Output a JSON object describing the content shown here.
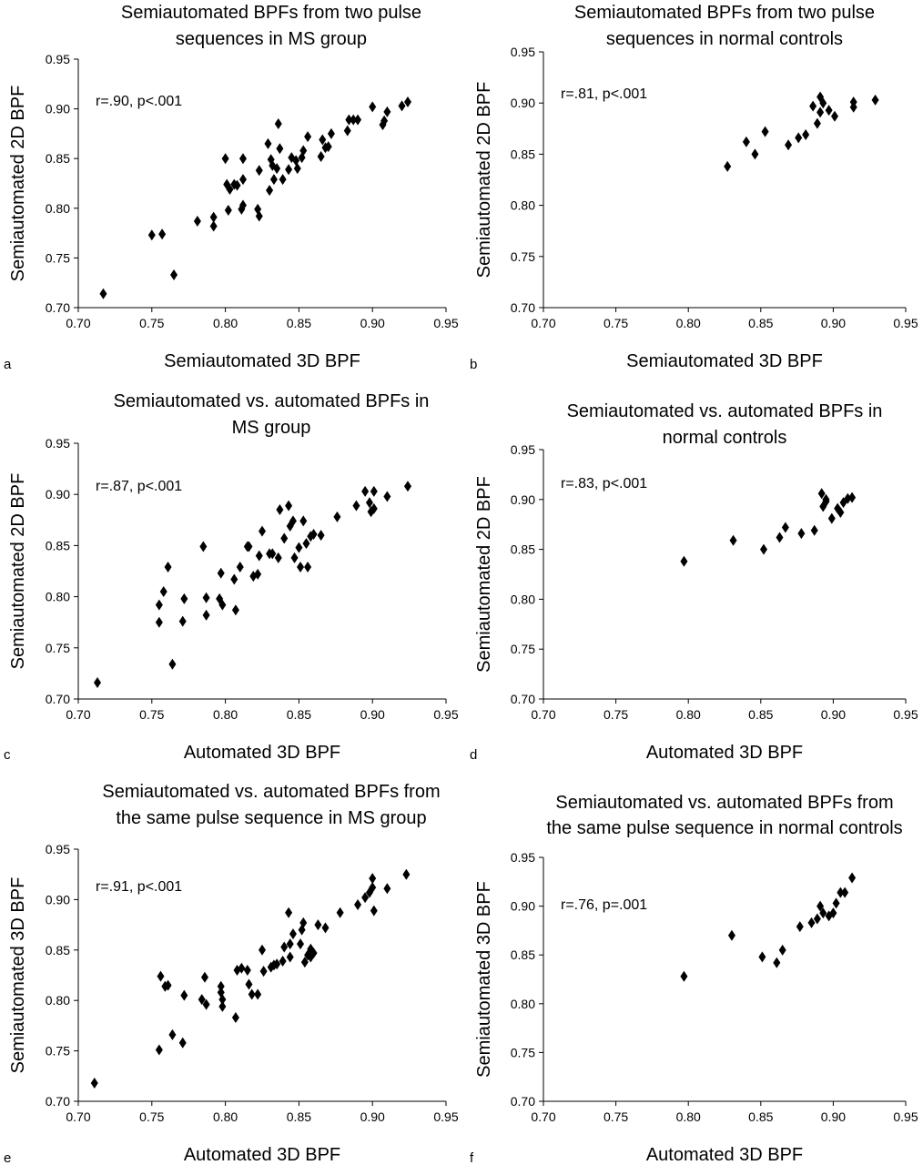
{
  "chart_data": [
    {
      "type": "scatter",
      "panel": "a",
      "title": [
        "Semiautomated BPFs from two pulse",
        "sequences in MS group"
      ],
      "xlabel": "Semiautomated 3D BPF",
      "ylabel": "Semiautomated 2D BPF",
      "annotation": "r=.90, p<.001",
      "xlim": [
        0.7,
        0.95
      ],
      "ylim": [
        0.7,
        0.95
      ],
      "xticks": [
        "0.70",
        "0.75",
        "0.80",
        "0.85",
        "0.90",
        "0.95"
      ],
      "yticks": [
        "0.70",
        "0.75",
        "0.80",
        "0.85",
        "0.90",
        "0.95"
      ],
      "grid": false,
      "points": [
        [
          0.717,
          0.714
        ],
        [
          0.75,
          0.773
        ],
        [
          0.757,
          0.774
        ],
        [
          0.765,
          0.733
        ],
        [
          0.781,
          0.787
        ],
        [
          0.792,
          0.791
        ],
        [
          0.792,
          0.782
        ],
        [
          0.8,
          0.85
        ],
        [
          0.801,
          0.824
        ],
        [
          0.803,
          0.819
        ],
        [
          0.802,
          0.798
        ],
        [
          0.806,
          0.824
        ],
        [
          0.808,
          0.823
        ],
        [
          0.811,
          0.799
        ],
        [
          0.812,
          0.829
        ],
        [
          0.812,
          0.85
        ],
        [
          0.812,
          0.803
        ],
        [
          0.822,
          0.799
        ],
        [
          0.823,
          0.792
        ],
        [
          0.823,
          0.838
        ],
        [
          0.829,
          0.865
        ],
        [
          0.83,
          0.818
        ],
        [
          0.831,
          0.849
        ],
        [
          0.832,
          0.843
        ],
        [
          0.833,
          0.829
        ],
        [
          0.835,
          0.84
        ],
        [
          0.836,
          0.885
        ],
        [
          0.837,
          0.86
        ],
        [
          0.839,
          0.829
        ],
        [
          0.843,
          0.839
        ],
        [
          0.845,
          0.851
        ],
        [
          0.848,
          0.848
        ],
        [
          0.849,
          0.84
        ],
        [
          0.852,
          0.851
        ],
        [
          0.853,
          0.858
        ],
        [
          0.856,
          0.872
        ],
        [
          0.865,
          0.852
        ],
        [
          0.866,
          0.869
        ],
        [
          0.868,
          0.861
        ],
        [
          0.87,
          0.862
        ],
        [
          0.872,
          0.875
        ],
        [
          0.883,
          0.878
        ],
        [
          0.884,
          0.889
        ],
        [
          0.887,
          0.889
        ],
        [
          0.89,
          0.889
        ],
        [
          0.9,
          0.902
        ],
        [
          0.907,
          0.884
        ],
        [
          0.908,
          0.888
        ],
        [
          0.91,
          0.897
        ],
        [
          0.92,
          0.903
        ],
        [
          0.924,
          0.907
        ]
      ]
    },
    {
      "type": "scatter",
      "panel": "b",
      "title": [
        "Semiautomated BPFs from two pulse",
        "sequences in normal controls"
      ],
      "xlabel": "Semiautomated 3D BPF",
      "ylabel": "Semiautomated 2D BPF",
      "annotation": "r=.81, p<.001",
      "xlim": [
        0.7,
        0.95
      ],
      "ylim": [
        0.7,
        0.95
      ],
      "xticks": [
        "0.70",
        "0.75",
        "0.80",
        "0.85",
        "0.90",
        "0.95"
      ],
      "yticks": [
        "0.70",
        "0.75",
        "0.80",
        "0.85",
        "0.90",
        "0.95"
      ],
      "grid": false,
      "points": [
        [
          0.827,
          0.838
        ],
        [
          0.84,
          0.862
        ],
        [
          0.846,
          0.85
        ],
        [
          0.853,
          0.872
        ],
        [
          0.869,
          0.859
        ],
        [
          0.876,
          0.866
        ],
        [
          0.881,
          0.869
        ],
        [
          0.886,
          0.897
        ],
        [
          0.889,
          0.88
        ],
        [
          0.891,
          0.906
        ],
        [
          0.891,
          0.891
        ],
        [
          0.893,
          0.9
        ],
        [
          0.897,
          0.893
        ],
        [
          0.901,
          0.887
        ],
        [
          0.914,
          0.896
        ],
        [
          0.914,
          0.901
        ],
        [
          0.929,
          0.903
        ]
      ]
    },
    {
      "type": "scatter",
      "panel": "c",
      "title": [
        "Semiautomated vs. automated BPFs in",
        "MS group"
      ],
      "xlabel": "Automated 3D BPF",
      "ylabel": "Semiautomated 2D BPF",
      "annotation": "r=.87, p<.001",
      "xlim": [
        0.7,
        0.95
      ],
      "ylim": [
        0.7,
        0.95
      ],
      "xticks": [
        "0.70",
        "0.75",
        "0.80",
        "0.85",
        "0.90",
        "0.95"
      ],
      "yticks": [
        "0.70",
        "0.75",
        "0.80",
        "0.85",
        "0.90",
        "0.95"
      ],
      "grid": false,
      "points": [
        [
          0.713,
          0.716
        ],
        [
          0.755,
          0.792
        ],
        [
          0.755,
          0.775
        ],
        [
          0.758,
          0.805
        ],
        [
          0.761,
          0.829
        ],
        [
          0.764,
          0.734
        ],
        [
          0.771,
          0.776
        ],
        [
          0.772,
          0.798
        ],
        [
          0.785,
          0.849
        ],
        [
          0.787,
          0.799
        ],
        [
          0.787,
          0.782
        ],
        [
          0.796,
          0.798
        ],
        [
          0.797,
          0.823
        ],
        [
          0.798,
          0.792
        ],
        [
          0.806,
          0.817
        ],
        [
          0.807,
          0.787
        ],
        [
          0.81,
          0.829
        ],
        [
          0.815,
          0.849
        ],
        [
          0.816,
          0.849
        ],
        [
          0.819,
          0.82
        ],
        [
          0.822,
          0.822
        ],
        [
          0.823,
          0.84
        ],
        [
          0.825,
          0.864
        ],
        [
          0.83,
          0.842
        ],
        [
          0.832,
          0.842
        ],
        [
          0.836,
          0.838
        ],
        [
          0.837,
          0.885
        ],
        [
          0.84,
          0.857
        ],
        [
          0.843,
          0.889
        ],
        [
          0.844,
          0.869
        ],
        [
          0.846,
          0.874
        ],
        [
          0.847,
          0.838
        ],
        [
          0.85,
          0.848
        ],
        [
          0.851,
          0.829
        ],
        [
          0.853,
          0.874
        ],
        [
          0.855,
          0.852
        ],
        [
          0.856,
          0.829
        ],
        [
          0.858,
          0.859
        ],
        [
          0.86,
          0.861
        ],
        [
          0.865,
          0.86
        ],
        [
          0.876,
          0.878
        ],
        [
          0.889,
          0.889
        ],
        [
          0.895,
          0.903
        ],
        [
          0.898,
          0.892
        ],
        [
          0.899,
          0.883
        ],
        [
          0.901,
          0.903
        ],
        [
          0.901,
          0.886
        ],
        [
          0.91,
          0.898
        ],
        [
          0.924,
          0.908
        ]
      ]
    },
    {
      "type": "scatter",
      "panel": "d",
      "title": [
        "Semiautomated vs. automated BPFs in",
        "normal controls"
      ],
      "xlabel": "Automated 3D BPF",
      "ylabel": "Semiautomated 2D BPF",
      "annotation": "r=.83, p<.001",
      "xlim": [
        0.7,
        0.95
      ],
      "ylim": [
        0.7,
        0.95
      ],
      "xticks": [
        "0.70",
        "0.75",
        "0.80",
        "0.85",
        "0.90",
        "0.95"
      ],
      "yticks": [
        "0.70",
        "0.75",
        "0.80",
        "0.85",
        "0.90",
        "0.95"
      ],
      "grid": false,
      "points": [
        [
          0.797,
          0.838
        ],
        [
          0.831,
          0.859
        ],
        [
          0.852,
          0.85
        ],
        [
          0.863,
          0.862
        ],
        [
          0.867,
          0.872
        ],
        [
          0.878,
          0.866
        ],
        [
          0.887,
          0.869
        ],
        [
          0.892,
          0.906
        ],
        [
          0.893,
          0.893
        ],
        [
          0.895,
          0.898
        ],
        [
          0.895,
          0.9
        ],
        [
          0.899,
          0.881
        ],
        [
          0.903,
          0.891
        ],
        [
          0.905,
          0.887
        ],
        [
          0.907,
          0.897
        ],
        [
          0.91,
          0.901
        ],
        [
          0.913,
          0.902
        ]
      ]
    },
    {
      "type": "scatter",
      "panel": "e",
      "title": [
        "Semiautomated vs. automated BPFs from",
        "the same pulse sequence in MS group"
      ],
      "xlabel": "Automated 3D BPF",
      "ylabel": "Semiautomated 3D BPF",
      "annotation": "r=.91, p<.001",
      "xlim": [
        0.7,
        0.95
      ],
      "ylim": [
        0.7,
        0.95
      ],
      "xticks": [
        "0.70",
        "0.75",
        "0.80",
        "0.85",
        "0.90",
        "0.95"
      ],
      "yticks": [
        "0.70",
        "0.75",
        "0.80",
        "0.85",
        "0.90",
        "0.95"
      ],
      "grid": false,
      "points": [
        [
          0.711,
          0.718
        ],
        [
          0.755,
          0.751
        ],
        [
          0.756,
          0.824
        ],
        [
          0.759,
          0.814
        ],
        [
          0.761,
          0.815
        ],
        [
          0.764,
          0.766
        ],
        [
          0.771,
          0.758
        ],
        [
          0.772,
          0.805
        ],
        [
          0.784,
          0.801
        ],
        [
          0.786,
          0.823
        ],
        [
          0.787,
          0.796
        ],
        [
          0.797,
          0.814
        ],
        [
          0.797,
          0.808
        ],
        [
          0.798,
          0.801
        ],
        [
          0.798,
          0.794
        ],
        [
          0.807,
          0.783
        ],
        [
          0.808,
          0.83
        ],
        [
          0.811,
          0.832
        ],
        [
          0.815,
          0.83
        ],
        [
          0.816,
          0.816
        ],
        [
          0.818,
          0.806
        ],
        [
          0.822,
          0.806
        ],
        [
          0.825,
          0.85
        ],
        [
          0.826,
          0.829
        ],
        [
          0.831,
          0.833
        ],
        [
          0.833,
          0.835
        ],
        [
          0.835,
          0.836
        ],
        [
          0.839,
          0.839
        ],
        [
          0.84,
          0.853
        ],
        [
          0.843,
          0.887
        ],
        [
          0.844,
          0.856
        ],
        [
          0.844,
          0.843
        ],
        [
          0.846,
          0.866
        ],
        [
          0.851,
          0.856
        ],
        [
          0.852,
          0.87
        ],
        [
          0.853,
          0.877
        ],
        [
          0.854,
          0.838
        ],
        [
          0.856,
          0.845
        ],
        [
          0.858,
          0.851
        ],
        [
          0.858,
          0.843
        ],
        [
          0.86,
          0.847
        ],
        [
          0.863,
          0.875
        ],
        [
          0.868,
          0.872
        ],
        [
          0.878,
          0.887
        ],
        [
          0.89,
          0.895
        ],
        [
          0.895,
          0.902
        ],
        [
          0.898,
          0.907
        ],
        [
          0.9,
          0.912
        ],
        [
          0.9,
          0.921
        ],
        [
          0.901,
          0.889
        ],
        [
          0.91,
          0.911
        ],
        [
          0.923,
          0.925
        ]
      ]
    },
    {
      "type": "scatter",
      "panel": "f",
      "title": [
        "Semiautomated vs. automated BPFs from",
        "the same pulse sequence in normal controls"
      ],
      "xlabel": "Automated 3D BPF",
      "ylabel": "Semiautomated 3D BPF",
      "annotation": "r=.76, p=.001",
      "xlim": [
        0.7,
        0.95
      ],
      "ylim": [
        0.7,
        0.95
      ],
      "xticks": [
        "0.70",
        "0.75",
        "0.80",
        "0.85",
        "0.90",
        "0.95"
      ],
      "yticks": [
        "0.70",
        "0.75",
        "0.80",
        "0.85",
        "0.90",
        "0.95"
      ],
      "grid": false,
      "points": [
        [
          0.797,
          0.828
        ],
        [
          0.83,
          0.87
        ],
        [
          0.851,
          0.848
        ],
        [
          0.861,
          0.842
        ],
        [
          0.865,
          0.855
        ],
        [
          0.877,
          0.879
        ],
        [
          0.885,
          0.883
        ],
        [
          0.889,
          0.887
        ],
        [
          0.891,
          0.9
        ],
        [
          0.893,
          0.893
        ],
        [
          0.897,
          0.89
        ],
        [
          0.9,
          0.893
        ],
        [
          0.902,
          0.903
        ],
        [
          0.905,
          0.914
        ],
        [
          0.908,
          0.914
        ],
        [
          0.913,
          0.929
        ]
      ]
    }
  ]
}
